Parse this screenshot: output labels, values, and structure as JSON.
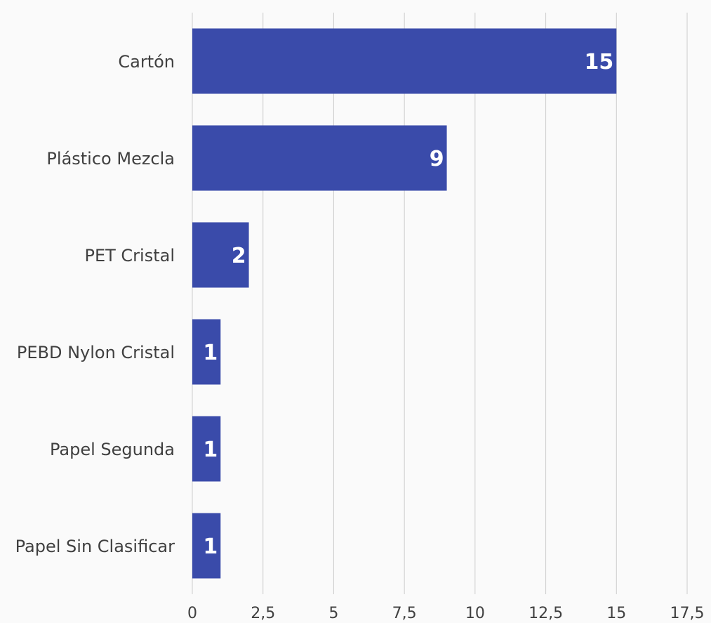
{
  "chart_data": {
    "type": "bar",
    "orientation": "horizontal",
    "title": "",
    "xlabel": "",
    "ylabel": "",
    "categories": [
      "Cartón",
      "Plástico Mezcla",
      "PET Cristal",
      "PEBD Nylon Cristal",
      "Papel Segunda",
      "Papel Sin Clasificar"
    ],
    "values": [
      15,
      9,
      2,
      1,
      1,
      1
    ],
    "data_labels": [
      "15",
      "9",
      "2",
      "1",
      "1",
      "1"
    ],
    "xlim": [
      0,
      17.5
    ],
    "x_ticks": [
      0,
      2.5,
      5,
      7.5,
      10,
      12.5,
      15,
      17.5
    ],
    "x_tick_labels": [
      "0",
      "2,5",
      "5",
      "7,5",
      "10",
      "12,5",
      "15",
      "17,5"
    ],
    "grid": "vertical",
    "legend": "none",
    "colors": {
      "bar": "#3a4baa",
      "grid": "#cccccc",
      "axis_text": "#404040",
      "data_label": "#ffffff",
      "background": "#fafafa"
    }
  }
}
